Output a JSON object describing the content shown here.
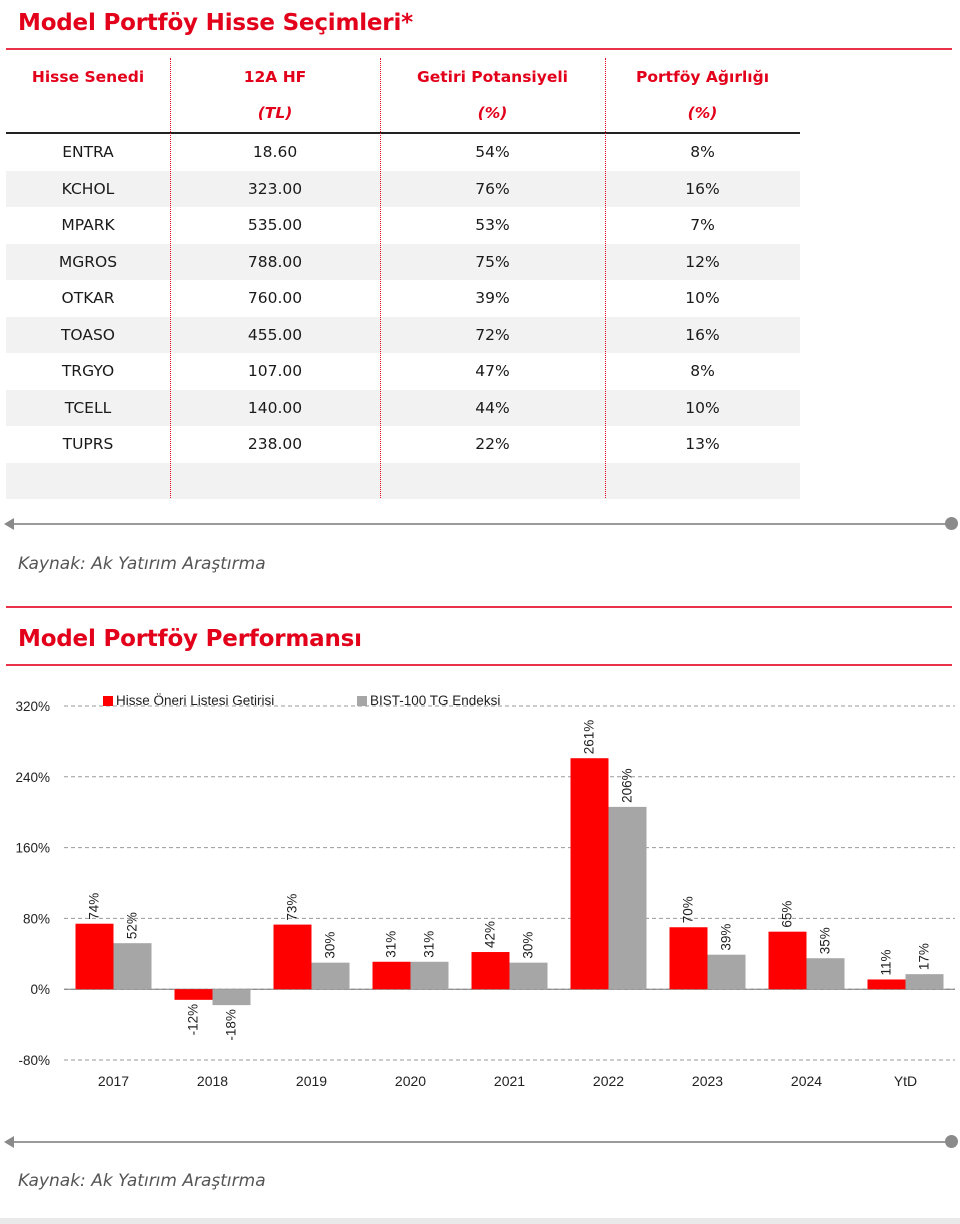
{
  "portfolio_table": {
    "title": "Model Portföy Hisse Seçimleri*",
    "headers": [
      {
        "line1": "Hisse Senedi",
        "line2": ""
      },
      {
        "line1": "12A HF",
        "line2": "(TL)"
      },
      {
        "line1": "Getiri Potansiyeli",
        "line2": "(%)"
      },
      {
        "line1": "Portföy Ağırlığı",
        "line2": "(%)"
      }
    ],
    "rows": [
      [
        "ENTRA",
        "18.60",
        "54%",
        "8%"
      ],
      [
        "KCHOL",
        "323.00",
        "76%",
        "16%"
      ],
      [
        "MPARK",
        "535.00",
        "53%",
        "7%"
      ],
      [
        "MGROS",
        "788.00",
        "75%",
        "12%"
      ],
      [
        "OTKAR",
        "760.00",
        "39%",
        "10%"
      ],
      [
        "TOASO",
        "455.00",
        "72%",
        "16%"
      ],
      [
        "TRGYO",
        "107.00",
        "47%",
        "8%"
      ],
      [
        "TCELL",
        "140.00",
        "44%",
        "10%"
      ],
      [
        "TUPRS",
        "238.00",
        "22%",
        "13%"
      ],
      [
        "",
        "",
        "",
        ""
      ]
    ],
    "source": "Kaynak: Ak Yatırım Araştırma"
  },
  "performance": {
    "title": "Model Portföy Performansı",
    "source": "Kaynak: Ak Yatırım Araştırma"
  },
  "colors": {
    "accent": "#e2001a",
    "series1": "#ff0000",
    "series2": "#a6a6a6",
    "shade": "#f2f2f2"
  },
  "chart_data": {
    "type": "bar",
    "title": "",
    "xlabel": "",
    "ylabel": "",
    "categories": [
      "2017",
      "2018",
      "2019",
      "2020",
      "2021",
      "2022",
      "2023",
      "2024",
      "YtD"
    ],
    "series": [
      {
        "name": "Hisse Öneri Listesi Getirisi",
        "values": [
          74,
          -12,
          73,
          31,
          42,
          261,
          70,
          65,
          11
        ],
        "labels": [
          "74%",
          "-12%",
          "73%",
          "31%",
          "42%",
          "261%",
          "70%",
          "65%",
          "11%"
        ]
      },
      {
        "name": "BIST-100 TG Endeksi",
        "values": [
          52,
          -18,
          30,
          31,
          30,
          206,
          39,
          35,
          17
        ],
        "labels": [
          "52%",
          "-18%",
          "30%",
          "31%",
          "30%",
          "206%",
          "39%",
          "35%",
          "17%"
        ]
      }
    ],
    "ylim": [
      -80,
      320
    ],
    "yticks": [
      -80,
      0,
      80,
      160,
      240,
      320
    ],
    "ytick_labels": [
      "-80%",
      "0%",
      "80%",
      "160%",
      "240%",
      "320%"
    ],
    "grid": true,
    "legend": "top"
  }
}
